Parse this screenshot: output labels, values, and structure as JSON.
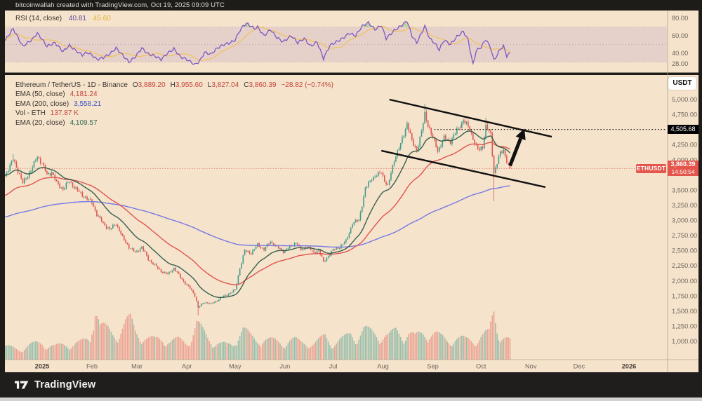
{
  "header": {
    "text": "bitcoinwallah created with TradingView.com, Oct 19, 2025 09:09 UTC"
  },
  "rsi_legend": {
    "label": "RSI (14, close)",
    "value": "40.81",
    "ma_value": "45.60"
  },
  "main_legend": {
    "title": "Ethereum / TetherUS - 1D - Binance",
    "ohlc": [
      {
        "k": "O",
        "v": "3,889.20"
      },
      {
        "k": "H",
        "v": "3,955.60"
      },
      {
        "k": "L",
        "v": "3,827.04"
      },
      {
        "k": "C",
        "v": "3,860.39"
      }
    ],
    "change": "−28.82 (−0.74%)",
    "rows": [
      {
        "label": "EMA (50, close)",
        "value": "4,181.24",
        "color": "#c2453c"
      },
      {
        "label": "EMA (200, close)",
        "value": "3,558.21",
        "color": "#3c55c8"
      },
      {
        "label": "Vol - ETH",
        "value": "137.87 K",
        "color": "#c2453c"
      },
      {
        "label": "EMA (20, close)",
        "value": "4,109.57",
        "color": "#2f6b4f"
      }
    ]
  },
  "axis": {
    "currency_button": "USDT",
    "target_label": "4,505.68",
    "price_label": "3,860.39",
    "countdown": "14:50:54",
    "symbol_badge": "ETHUSDT"
  },
  "footer": {
    "brand": "TradingView"
  },
  "colors": {
    "background": "#f6e3cc",
    "frame": "#1e1c19",
    "up": "#3f9b8a",
    "down": "#dd5750",
    "vol_up": "rgba(63,155,138,0.5)",
    "vol_down": "rgba(221,87,80,0.45)",
    "ema20": "#37604d",
    "ema50": "#e0544e",
    "ema200": "#7579e4",
    "rsi": "#7e57c2",
    "rsi_ma": "#eec04d",
    "band_fill": "rgba(126,87,194,0.13)",
    "band_line": "rgba(130,90,130,0.5)",
    "overbought_fill": "rgba(102,187,106,0.4)",
    "axis_text": "#6e675c",
    "axis_text_bold": "#46413a",
    "axis_line": "#b5a691",
    "annotation": "#101010",
    "last_price_line": "rgba(217,80,70,0.7)"
  },
  "chart_data": {
    "type": "candlestick",
    "title": "Ethereum / TetherUS",
    "exchange": "Binance",
    "timeframe": "1D",
    "ohlc_current": {
      "open": 3889.2,
      "high": 3955.6,
      "low": 3827.04,
      "close": 3860.39,
      "change": -28.82,
      "change_pct": -0.74
    },
    "indicators": {
      "rsi14": 40.81,
      "rsi_ma": 45.6,
      "ema50": 4181.24,
      "ema200": 3558.21,
      "ema20": 4109.57,
      "volume_eth": "137.87 K"
    },
    "price_axis": {
      "ticks": [
        5000,
        4750,
        4250,
        4000,
        3500,
        3250,
        3000,
        2750,
        2500,
        2250,
        2000,
        1750,
        1500,
        1250,
        1000
      ],
      "min": 700,
      "max": 5400
    },
    "rsi_axis": {
      "ticks": [
        80,
        60,
        40,
        28
      ],
      "bands": [
        70,
        50,
        30
      ]
    },
    "time_axis": {
      "labels": [
        {
          "text": "2025",
          "day": 0,
          "bold": true
        },
        {
          "text": "Feb",
          "day": 31
        },
        {
          "text": "Mar",
          "day": 59
        },
        {
          "text": "Apr",
          "day": 90
        },
        {
          "text": "May",
          "day": 120
        },
        {
          "text": "Jun",
          "day": 151
        },
        {
          "text": "Jul",
          "day": 181
        },
        {
          "text": "Aug",
          "day": 212
        },
        {
          "text": "Sep",
          "day": 243
        },
        {
          "text": "Oct",
          "day": 273
        },
        {
          "text": "Nov",
          "day": 304
        },
        {
          "text": "Dec",
          "day": 334
        },
        {
          "text": "2026",
          "day": 365,
          "bold": true
        }
      ]
    },
    "series": {
      "close_anchors": [
        [
          -23,
          3750
        ],
        [
          -20,
          3900
        ],
        [
          -18,
          4020
        ],
        [
          -15,
          3820
        ],
        [
          -12,
          3620
        ],
        [
          -10,
          3700
        ],
        [
          -6,
          3880
        ],
        [
          -3,
          4060
        ],
        [
          0,
          3940
        ],
        [
          3,
          3760
        ],
        [
          6,
          3800
        ],
        [
          9,
          3620
        ],
        [
          13,
          3520
        ],
        [
          17,
          3650
        ],
        [
          21,
          3520
        ],
        [
          25,
          3420
        ],
        [
          28,
          3360
        ],
        [
          31,
          3300
        ],
        [
          34,
          3100
        ],
        [
          38,
          2950
        ],
        [
          42,
          2850
        ],
        [
          46,
          2950
        ],
        [
          50,
          2720
        ],
        [
          54,
          2560
        ],
        [
          58,
          2470
        ],
        [
          62,
          2560
        ],
        [
          66,
          2360
        ],
        [
          70,
          2260
        ],
        [
          74,
          2160
        ],
        [
          78,
          2110
        ],
        [
          82,
          2210
        ],
        [
          86,
          2060
        ],
        [
          89,
          1960
        ],
        [
          92,
          1880
        ],
        [
          95,
          1760
        ],
        [
          97,
          1560
        ],
        [
          101,
          1650
        ],
        [
          105,
          1620
        ],
        [
          109,
          1680
        ],
        [
          113,
          1750
        ],
        [
          117,
          1800
        ],
        [
          120,
          1850
        ],
        [
          123,
          2210
        ],
        [
          126,
          2500
        ],
        [
          130,
          2460
        ],
        [
          134,
          2600
        ],
        [
          138,
          2520
        ],
        [
          142,
          2650
        ],
        [
          146,
          2560
        ],
        [
          150,
          2490
        ],
        [
          154,
          2560
        ],
        [
          158,
          2640
        ],
        [
          161,
          2510
        ],
        [
          165,
          2570
        ],
        [
          169,
          2460
        ],
        [
          172,
          2520
        ],
        [
          175,
          2310
        ],
        [
          179,
          2450
        ],
        [
          181,
          2510
        ],
        [
          185,
          2560
        ],
        [
          189,
          2660
        ],
        [
          193,
          2950
        ],
        [
          197,
          3010
        ],
        [
          201,
          3520
        ],
        [
          205,
          3700
        ],
        [
          209,
          3760
        ],
        [
          211,
          3810
        ],
        [
          213,
          3660
        ],
        [
          215,
          3560
        ],
        [
          219,
          4010
        ],
        [
          223,
          4260
        ],
        [
          227,
          4610
        ],
        [
          230,
          4310
        ],
        [
          233,
          4160
        ],
        [
          236,
          4460
        ],
        [
          238,
          4760
        ],
        [
          241,
          4510
        ],
        [
          243,
          4360
        ],
        [
          246,
          4160
        ],
        [
          250,
          4360
        ],
        [
          254,
          4310
        ],
        [
          258,
          4490
        ],
        [
          262,
          4660
        ],
        [
          266,
          4510
        ],
        [
          270,
          4210
        ],
        [
          272,
          4160
        ],
        [
          274,
          4230
        ],
        [
          276,
          4560
        ],
        [
          279,
          4410
        ],
        [
          281,
          3790
        ],
        [
          283,
          3960
        ],
        [
          285,
          4110
        ],
        [
          287,
          4160
        ],
        [
          289,
          3990
        ],
        [
          291,
          3860.39
        ]
      ],
      "wick_overrides": [
        {
          "t": -18,
          "high": 4100
        },
        {
          "t": 97,
          "low": 1430
        },
        {
          "t": 238,
          "high": 4930
        },
        {
          "t": 276,
          "high": 4700
        },
        {
          "t": 281,
          "low": 3320
        }
      ],
      "volume_anchors": [
        [
          -23,
          20
        ],
        [
          -15,
          16
        ],
        [
          -8,
          22
        ],
        [
          0,
          26
        ],
        [
          8,
          20
        ],
        [
          16,
          24
        ],
        [
          24,
          26
        ],
        [
          30,
          32
        ],
        [
          33,
          95
        ],
        [
          36,
          52
        ],
        [
          40,
          46
        ],
        [
          44,
          40
        ],
        [
          48,
          44
        ],
        [
          52,
          56
        ],
        [
          55,
          60
        ],
        [
          58,
          44
        ],
        [
          62,
          38
        ],
        [
          66,
          32
        ],
        [
          70,
          30
        ],
        [
          75,
          34
        ],
        [
          80,
          28
        ],
        [
          85,
          30
        ],
        [
          89,
          28
        ],
        [
          93,
          35
        ],
        [
          96,
          55
        ],
        [
          99,
          46
        ],
        [
          103,
          34
        ],
        [
          107,
          28
        ],
        [
          111,
          24
        ],
        [
          115,
          22
        ],
        [
          119,
          24
        ],
        [
          122,
          42
        ],
        [
          125,
          48
        ],
        [
          129,
          36
        ],
        [
          133,
          30
        ],
        [
          137,
          34
        ],
        [
          141,
          30
        ],
        [
          145,
          28
        ],
        [
          149,
          26
        ],
        [
          153,
          30
        ],
        [
          157,
          30
        ],
        [
          161,
          26
        ],
        [
          165,
          28
        ],
        [
          169,
          24
        ],
        [
          173,
          30
        ],
        [
          176,
          36
        ],
        [
          180,
          26
        ],
        [
          184,
          28
        ],
        [
          188,
          32
        ],
        [
          192,
          40
        ],
        [
          196,
          36
        ],
        [
          200,
          46
        ],
        [
          204,
          42
        ],
        [
          208,
          40
        ],
        [
          212,
          38
        ],
        [
          216,
          36
        ],
        [
          220,
          44
        ],
        [
          224,
          40
        ],
        [
          228,
          42
        ],
        [
          232,
          34
        ],
        [
          236,
          40
        ],
        [
          240,
          44
        ],
        [
          244,
          40
        ],
        [
          248,
          34
        ],
        [
          252,
          30
        ],
        [
          256,
          34
        ],
        [
          260,
          32
        ],
        [
          264,
          30
        ],
        [
          268,
          32
        ],
        [
          272,
          34
        ],
        [
          275,
          38
        ],
        [
          278,
          40
        ],
        [
          281,
          75
        ],
        [
          283,
          52
        ],
        [
          285,
          40
        ],
        [
          288,
          34
        ],
        [
          291,
          28
        ]
      ],
      "rsi_anchors": [
        [
          -23,
          55
        ],
        [
          -18,
          68
        ],
        [
          -12,
          48
        ],
        [
          -6,
          56
        ],
        [
          -3,
          63
        ],
        [
          0,
          56
        ],
        [
          3,
          48
        ],
        [
          8,
          52
        ],
        [
          13,
          42
        ],
        [
          17,
          49
        ],
        [
          21,
          43
        ],
        [
          25,
          38
        ],
        [
          28,
          41
        ],
        [
          31,
          38
        ],
        [
          34,
          33
        ],
        [
          38,
          35
        ],
        [
          42,
          39
        ],
        [
          46,
          46
        ],
        [
          50,
          38
        ],
        [
          54,
          30
        ],
        [
          58,
          36
        ],
        [
          62,
          46
        ],
        [
          66,
          39
        ],
        [
          70,
          37
        ],
        [
          74,
          33
        ],
        [
          78,
          40
        ],
        [
          82,
          45
        ],
        [
          86,
          36
        ],
        [
          90,
          33
        ],
        [
          95,
          27
        ],
        [
          98,
          31
        ],
        [
          101,
          41
        ],
        [
          105,
          39
        ],
        [
          109,
          46
        ],
        [
          113,
          50
        ],
        [
          117,
          52
        ],
        [
          120,
          55
        ],
        [
          123,
          66
        ],
        [
          125,
          71
        ],
        [
          127,
          74
        ],
        [
          130,
          71
        ],
        [
          132,
          68
        ],
        [
          134,
          70
        ],
        [
          138,
          60
        ],
        [
          142,
          67
        ],
        [
          146,
          58
        ],
        [
          150,
          53
        ],
        [
          155,
          60
        ],
        [
          159,
          52
        ],
        [
          163,
          57
        ],
        [
          167,
          48
        ],
        [
          171,
          53
        ],
        [
          175,
          34
        ],
        [
          179,
          49
        ],
        [
          183,
          53
        ],
        [
          187,
          57
        ],
        [
          191,
          63
        ],
        [
          195,
          60
        ],
        [
          199,
          71
        ],
        [
          203,
          75
        ],
        [
          207,
          67
        ],
        [
          211,
          72
        ],
        [
          214,
          57
        ],
        [
          219,
          66
        ],
        [
          223,
          71
        ],
        [
          227,
          77
        ],
        [
          230,
          60
        ],
        [
          233,
          52
        ],
        [
          236,
          63
        ],
        [
          238,
          71
        ],
        [
          241,
          57
        ],
        [
          244,
          52
        ],
        [
          247,
          44
        ],
        [
          250,
          55
        ],
        [
          254,
          50
        ],
        [
          258,
          59
        ],
        [
          262,
          65
        ],
        [
          265,
          55
        ],
        [
          268,
          27
        ],
        [
          270,
          43
        ],
        [
          273,
          47
        ],
        [
          276,
          56
        ],
        [
          279,
          46
        ],
        [
          281,
          32
        ],
        [
          283,
          38
        ],
        [
          285,
          45
        ],
        [
          287,
          48
        ],
        [
          289,
          37
        ],
        [
          291,
          40.81
        ]
      ]
    },
    "emas": [
      {
        "period": 200,
        "seed": 3050,
        "color_key": "ema200"
      },
      {
        "period": 50,
        "seed": 3400,
        "color_key": "ema50"
      },
      {
        "period": 20,
        "seed": 3750,
        "color_key": "ema20"
      }
    ],
    "annotations": {
      "channel_upper": {
        "t1": 216,
        "p1": 5000,
        "t2": 317,
        "p2": 4385
      },
      "channel_lower": {
        "t1": 211,
        "p1": 4154,
        "t2": 313,
        "p2": 3551
      },
      "target_line": {
        "price": 4505.68,
        "t_start": 244
      },
      "arrow": {
        "t1": 291,
        "p1": 3905,
        "t2": 300,
        "p2": 4520
      },
      "last_price": 3860.39
    }
  }
}
